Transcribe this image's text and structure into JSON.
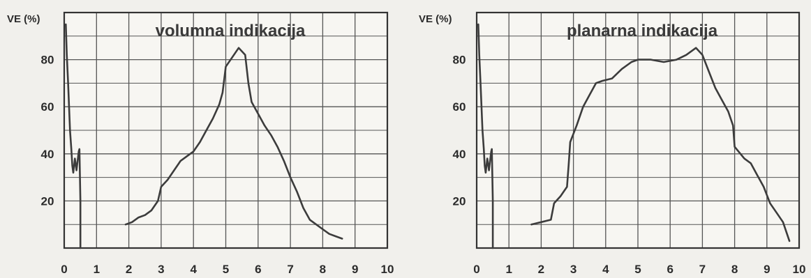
{
  "chart_data": [
    {
      "type": "line",
      "title": "volumna indikacija",
      "ylabel": "VE (%)",
      "xlabel": "",
      "xlim": [
        0,
        10
      ],
      "ylim": [
        0,
        100
      ],
      "x_ticks": [
        "0",
        "1",
        "2",
        "3",
        "4",
        "5",
        "6",
        "7",
        "8",
        "9",
        "10"
      ],
      "y_ticks": [
        "20",
        "40",
        "60",
        "80"
      ],
      "y_tick_values": [
        20,
        40,
        60,
        80
      ],
      "grid": true,
      "legend": "none",
      "line_color": "#3c3c3c",
      "series": [
        {
          "x": [
            0.05,
            0.08,
            0.12,
            0.18,
            0.22,
            0.25,
            0.28,
            0.33,
            0.38,
            0.45,
            0.47,
            0.5,
            0.5
          ],
          "y": [
            95,
            82,
            70,
            50,
            42,
            35,
            32,
            38,
            33,
            41,
            42,
            20,
            0
          ]
        },
        {
          "x": [
            1.9,
            2.1,
            2.3,
            2.5,
            2.7,
            2.9,
            3.0,
            3.2,
            3.4,
            3.6,
            3.8,
            4.0,
            4.2,
            4.4,
            4.6,
            4.8,
            4.9,
            5.0,
            5.2,
            5.4,
            5.6,
            5.7,
            5.8,
            6.0,
            6.2,
            6.4,
            6.6,
            6.8,
            7.0,
            7.2,
            7.4,
            7.6,
            7.8,
            8.0,
            8.2,
            8.4,
            8.6
          ],
          "y": [
            10,
            11,
            13,
            14,
            16,
            20,
            26,
            29,
            33,
            37,
            39,
            41,
            45,
            50,
            55,
            61,
            66,
            77,
            81,
            85,
            82,
            70,
            62,
            57,
            52,
            48,
            43,
            37,
            30,
            24,
            17,
            12,
            10,
            8,
            6,
            5,
            4
          ]
        }
      ]
    },
    {
      "type": "line",
      "title": "planarna indikacija",
      "ylabel": "VE (%)",
      "xlabel": "",
      "xlim": [
        0,
        10
      ],
      "ylim": [
        0,
        100
      ],
      "x_ticks": [
        "0",
        "1",
        "2",
        "3",
        "4",
        "5",
        "6",
        "7",
        "8",
        "9",
        "10"
      ],
      "y_ticks": [
        "20",
        "40",
        "60",
        "80"
      ],
      "y_tick_values": [
        20,
        40,
        60,
        80
      ],
      "grid": true,
      "legend": "none",
      "line_color": "#3c3c3c",
      "series": [
        {
          "x": [
            0.05,
            0.08,
            0.12,
            0.18,
            0.22,
            0.25,
            0.28,
            0.33,
            0.38,
            0.45,
            0.47,
            0.5,
            0.5
          ],
          "y": [
            95,
            82,
            70,
            50,
            42,
            35,
            32,
            38,
            33,
            41,
            42,
            20,
            0
          ]
        },
        {
          "x": [
            1.7,
            2.0,
            2.3,
            2.4,
            2.6,
            2.8,
            2.85,
            2.9,
            3.1,
            3.3,
            3.5,
            3.7,
            3.9,
            4.2,
            4.5,
            4.8,
            5.0,
            5.4,
            5.8,
            6.2,
            6.5,
            6.8,
            7.0,
            7.2,
            7.4,
            7.6,
            7.8,
            7.95,
            8.0,
            8.3,
            8.5,
            8.7,
            8.9,
            9.1,
            9.3,
            9.5,
            9.7
          ],
          "y": [
            10,
            11,
            12,
            19,
            22,
            26,
            35,
            45,
            52,
            60,
            65,
            70,
            71,
            72,
            76,
            79,
            80,
            80,
            79,
            80,
            82,
            85,
            82,
            75,
            68,
            63,
            58,
            52,
            43,
            38,
            36,
            31,
            26,
            19,
            15,
            11,
            3
          ]
        }
      ]
    }
  ]
}
